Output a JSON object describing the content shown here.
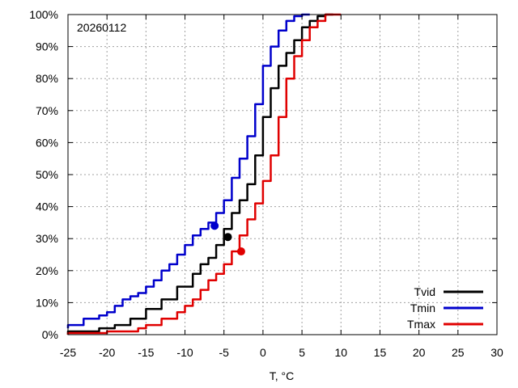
{
  "chart_data": {
    "type": "line",
    "annotation": "20260112",
    "xlabel": "T, °C",
    "ylabel": "",
    "xlim": [
      -25,
      30
    ],
    "ylim": [
      0,
      100
    ],
    "xticks": [
      -25,
      -20,
      -15,
      -10,
      -5,
      0,
      5,
      10,
      15,
      20,
      25,
      30
    ],
    "yticks": [
      0,
      10,
      20,
      30,
      40,
      50,
      60,
      70,
      80,
      90,
      100
    ],
    "xtick_labels": [
      "-25",
      "-20",
      "-15",
      "-10",
      "-5",
      "0",
      "5",
      "10",
      "15",
      "20",
      "25",
      "30"
    ],
    "ytick_labels": [
      "0%",
      "10%",
      "20%",
      "30%",
      "40%",
      "50%",
      "60%",
      "70%",
      "80%",
      "90%",
      "100%"
    ],
    "grid": true,
    "legend_position": "bottom-right",
    "series": [
      {
        "name": "Tvid",
        "color": "#000000",
        "marker": {
          "x": -4.5,
          "y": 30.5
        },
        "x": [
          -25,
          -21,
          -19,
          -17,
          -15,
          -13,
          -11,
          -9,
          -8,
          -7,
          -6,
          -5,
          -4,
          -3,
          -2,
          -1,
          0,
          1,
          2,
          3,
          4,
          5,
          6,
          7,
          8,
          9
        ],
        "y": [
          0,
          1,
          2,
          3,
          5,
          8,
          11,
          15,
          19,
          22,
          24,
          28,
          33,
          38,
          42,
          47,
          56,
          68,
          77,
          84,
          88,
          92,
          96,
          98,
          99.5,
          100
        ]
      },
      {
        "name": "Tmin",
        "color": "#0000cc",
        "marker": {
          "x": -6.2,
          "y": 34
        },
        "x": [
          -25,
          -23,
          -21,
          -20,
          -19,
          -18,
          -17,
          -16,
          -15,
          -14,
          -13,
          -12,
          -11,
          -10,
          -9,
          -8,
          -7,
          -6,
          -5,
          -4,
          -3,
          -2,
          -1,
          0,
          1,
          2,
          3,
          4,
          5,
          6
        ],
        "y": [
          2,
          3,
          5,
          6,
          7,
          9,
          11,
          12,
          13,
          15,
          17,
          20,
          22,
          25,
          28,
          31,
          33,
          35,
          38,
          42,
          49,
          55,
          62,
          72,
          84,
          90,
          95,
          98,
          99.5,
          100
        ]
      },
      {
        "name": "Tmax",
        "color": "#e00000",
        "marker": {
          "x": -2.8,
          "y": 26
        },
        "x": [
          -25,
          -20,
          -16,
          -15,
          -13,
          -11,
          -10,
          -9,
          -8,
          -7,
          -6,
          -5,
          -4,
          -3,
          -2,
          -1,
          0,
          1,
          2,
          3,
          4,
          5,
          6,
          7,
          8,
          10
        ],
        "y": [
          0,
          0.5,
          1,
          2,
          3,
          5,
          7,
          9,
          11,
          14,
          17,
          19,
          22,
          26,
          31,
          36,
          41,
          48,
          56,
          68,
          80,
          87,
          92,
          96,
          98,
          100
        ]
      }
    ]
  }
}
